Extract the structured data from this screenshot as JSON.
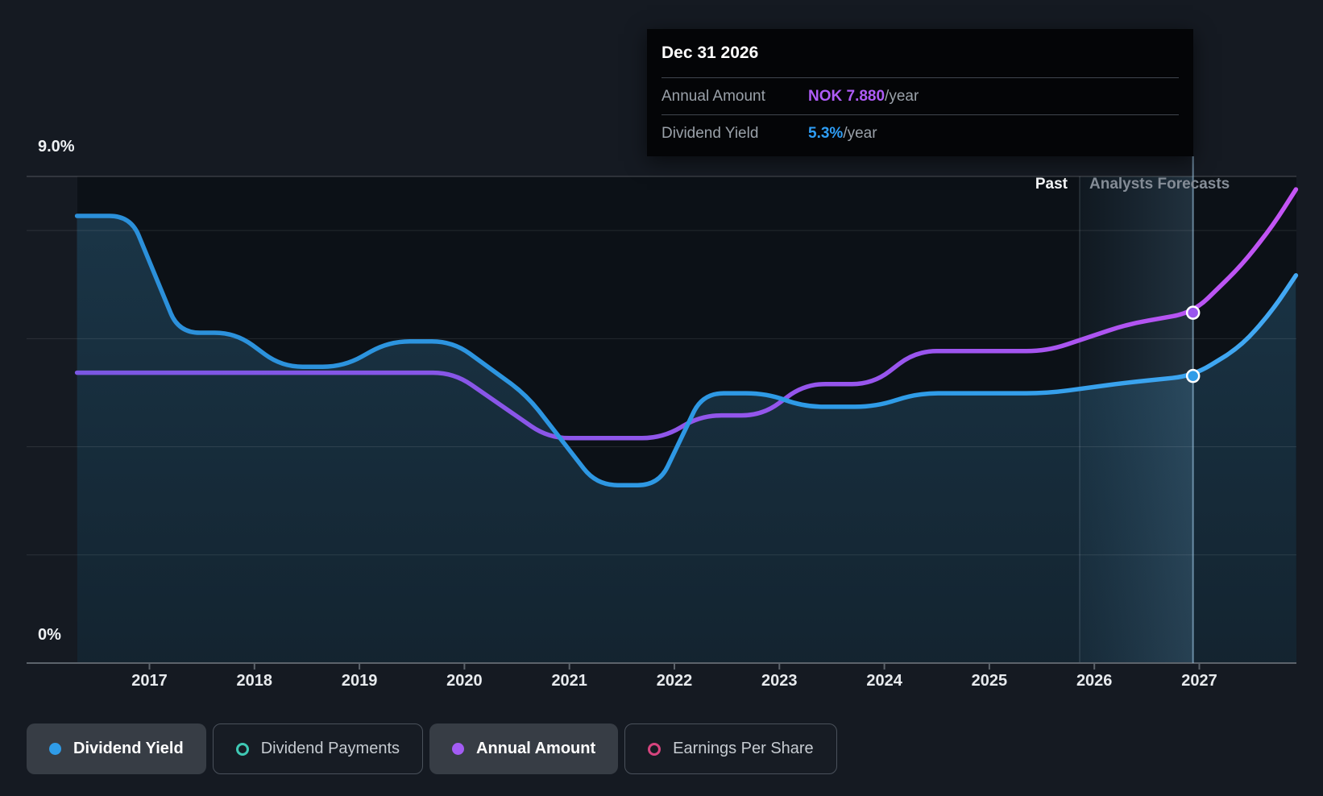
{
  "chart_data": {
    "type": "line",
    "x_ticks": [
      2017,
      2018,
      2019,
      2020,
      2021,
      2022,
      2023,
      2024,
      2025,
      2026,
      2027
    ],
    "x_range": [
      2016.31,
      2027.92
    ],
    "y_axis_unit": "%",
    "y_range_pct": [
      0,
      9
    ],
    "y_gridlines_pct": [
      0,
      2,
      4,
      6,
      8,
      9
    ],
    "y_tick_labels": [
      "9.0%",
      "0%"
    ],
    "grid": true,
    "legend_position": "bottom",
    "past_forecast_divider_x": 2025.86,
    "cursor_x": 2026.94,
    "series": [
      {
        "name": "Dividend Yield",
        "unit": "%",
        "style": "line+area",
        "color": "#2f9ce8",
        "color_start": "#2b8fd9",
        "color_end": "#43a9f4",
        "points": [
          [
            2016.31,
            8.27
          ],
          [
            2016.82,
            8.27
          ],
          [
            2017.28,
            6.11
          ],
          [
            2017.82,
            6.11
          ],
          [
            2018.26,
            5.48
          ],
          [
            2018.85,
            5.48
          ],
          [
            2019.28,
            5.95
          ],
          [
            2019.89,
            5.95
          ],
          [
            2020.59,
            4.96
          ],
          [
            2021.26,
            3.29
          ],
          [
            2021.85,
            3.29
          ],
          [
            2022.27,
            4.99
          ],
          [
            2022.88,
            4.99
          ],
          [
            2023.23,
            4.74
          ],
          [
            2023.92,
            4.74
          ],
          [
            2024.31,
            4.99
          ],
          [
            2025.55,
            4.99
          ],
          [
            2026.32,
            5.19
          ],
          [
            2026.94,
            5.31
          ],
          [
            2027.4,
            5.86
          ],
          [
            2027.7,
            6.53
          ],
          [
            2027.92,
            7.17
          ]
        ]
      },
      {
        "name": "Annual Amount",
        "unit": "NOK (plotted on yield axis scale)",
        "style": "line",
        "color": "#9a55ee",
        "color_start": "#7a57e2",
        "color_end": "#c554f5",
        "points": [
          [
            2016.31,
            5.37
          ],
          [
            2019.9,
            5.37
          ],
          [
            2020.8,
            4.16
          ],
          [
            2021.89,
            4.16
          ],
          [
            2022.25,
            4.58
          ],
          [
            2022.84,
            4.58
          ],
          [
            2023.24,
            5.16
          ],
          [
            2023.89,
            5.16
          ],
          [
            2024.3,
            5.77
          ],
          [
            2025.55,
            5.77
          ],
          [
            2026.32,
            6.27
          ],
          [
            2026.94,
            6.48
          ],
          [
            2027.4,
            7.35
          ],
          [
            2027.7,
            8.09
          ],
          [
            2027.92,
            8.76
          ]
        ]
      }
    ],
    "markers": [
      {
        "series": "Annual Amount",
        "x": 2026.94,
        "y_pct": 6.48,
        "label": "NOK 7.880/year"
      },
      {
        "series": "Dividend Yield",
        "x": 2026.94,
        "y_pct": 5.31,
        "label": "5.3%/year"
      }
    ]
  },
  "annotations": {
    "past": "Past",
    "forecast": "Analysts Forecasts"
  },
  "tooltip": {
    "date": "Dec 31 2026",
    "rows": [
      {
        "label": "Annual Amount",
        "value": "NOK 7.880",
        "suffix": "/year",
        "color": "#ae5cf7"
      },
      {
        "label": "Dividend Yield",
        "value": "5.3%",
        "suffix": "/year",
        "color": "#2e9df5"
      }
    ]
  },
  "legend": {
    "items": [
      {
        "label": "Dividend Yield",
        "marker": "filled",
        "color": "#2f9ce8",
        "active": true
      },
      {
        "label": "Dividend Payments",
        "marker": "hollow",
        "color": "#3fc8b4",
        "active": false
      },
      {
        "label": "Annual Amount",
        "marker": "filled",
        "color": "#a35cf4",
        "active": true
      },
      {
        "label": "Earnings Per Share",
        "marker": "hollow",
        "color": "#d6447e",
        "active": false
      }
    ]
  },
  "colors": {
    "page_bg": "#151a22",
    "plot_bg": "#0c1117",
    "gridline": "rgba(255,255,255,0.10)",
    "gridline_top": "rgba(255,255,255,0.17)",
    "axis": "#5c636b",
    "cursor_line": "rgba(168,212,242,0.55)",
    "area_fill_top": "rgba(64,150,200,0.28)",
    "area_fill_bottom": "rgba(64,150,200,0.14)",
    "band_left": "rgba(96,168,214,0.05)",
    "band_right": "rgba(129,196,240,0.18)",
    "divider_line": "rgba(190,212,228,0.16)"
  }
}
